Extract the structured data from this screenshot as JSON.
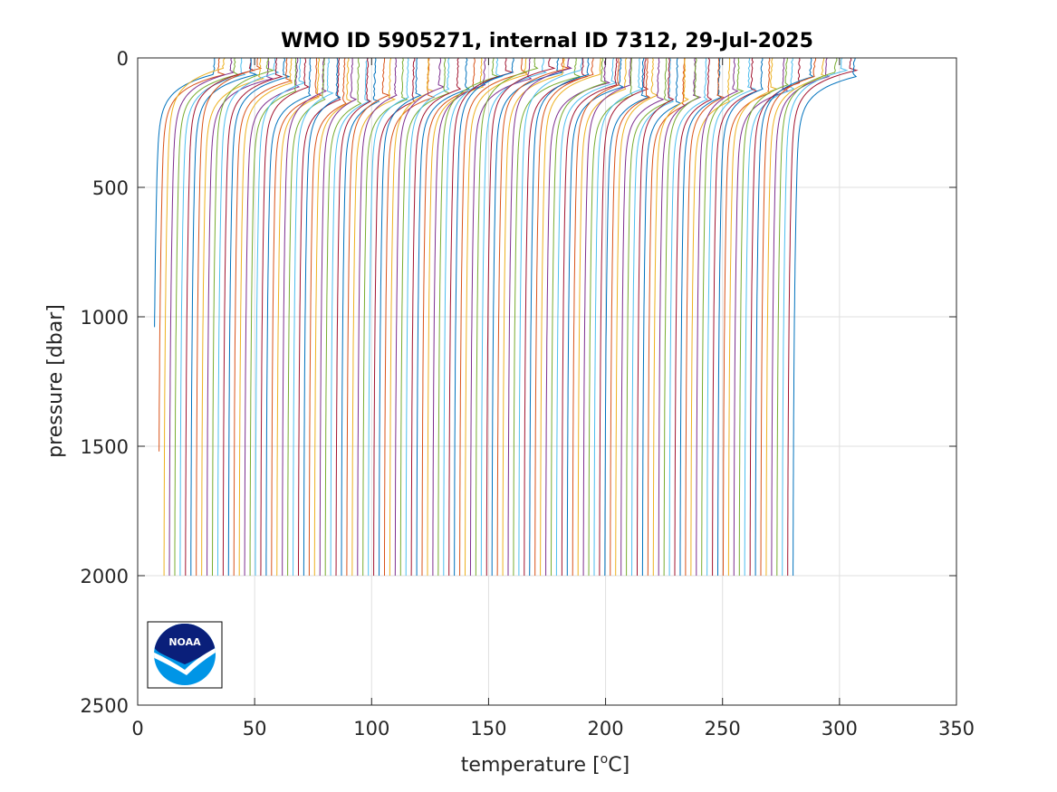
{
  "chart_data": {
    "type": "line",
    "title": "WMO ID 5905271, internal ID 7312, 29-Jul-2025",
    "xlabel": "temperature [",
    "xlabel_sup": "o",
    "xlabel_end": "C]",
    "ylabel": "pressure [dbar]",
    "xlim": [
      0,
      350
    ],
    "ylim": [
      0,
      2500
    ],
    "y_reversed": true,
    "grid": true,
    "xticks": [
      "0",
      "50",
      "100",
      "150",
      "200",
      "250",
      "300",
      "350"
    ],
    "yticks": [
      "0",
      "500",
      "1000",
      "1500",
      "2000",
      "2500"
    ],
    "profile_count": 120,
    "offset_step": 2.3,
    "deep_temperature_first": 6.5,
    "deep_temperature_last": 280,
    "max_pressure": 2010,
    "palette": [
      "#0072bd",
      "#d95319",
      "#edb120",
      "#7e2f8e",
      "#77ac30",
      "#4dbeee",
      "#a2142f"
    ]
  },
  "logo": {
    "text": "NOAA",
    "colors": {
      "top": "#0a1f7a",
      "bottom": "#0095e6",
      "ring": "#ffffff"
    }
  }
}
